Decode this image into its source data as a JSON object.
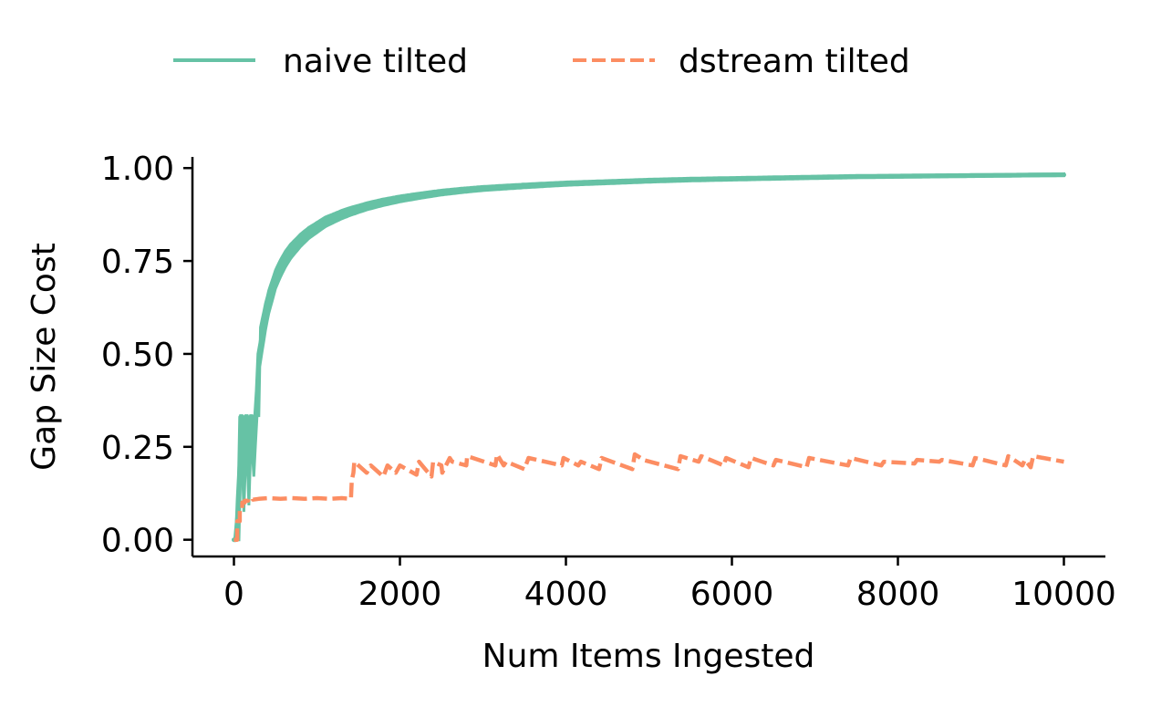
{
  "chart_data": {
    "type": "line",
    "title": "",
    "xlabel": "Num Items Ingested",
    "ylabel": "Gap Size Cost",
    "xlim": [
      -500,
      10500
    ],
    "ylim": [
      -0.045,
      1.03
    ],
    "xticks": [
      0,
      2000,
      4000,
      6000,
      8000,
      10000
    ],
    "xtick_labels": [
      "0",
      "2000",
      "4000",
      "6000",
      "8000",
      "10000"
    ],
    "yticks": [
      0.0,
      0.25,
      0.5,
      0.75,
      1.0
    ],
    "ytick_labels": [
      "0.00",
      "0.25",
      "0.50",
      "0.75",
      "1.00"
    ],
    "grid": false,
    "legend_placement": "top-center, above plot, 2 columns",
    "series": [
      {
        "name": "naive tilted",
        "color": "#66c2a5",
        "style": "solid",
        "x": [
          0,
          20,
          40,
          60,
          80,
          100,
          120,
          140,
          160,
          180,
          200,
          220,
          240,
          260,
          280,
          300,
          340,
          380,
          420,
          460,
          500,
          560,
          620,
          680,
          740,
          800,
          900,
          1000,
          1100,
          1200,
          1300,
          1400,
          1500,
          1600,
          1800,
          2000,
          2250,
          2500,
          2750,
          3000,
          3500,
          4000,
          4500,
          5000,
          5500,
          6000,
          6500,
          7000,
          7500,
          8000,
          8500,
          9000,
          9500,
          10000
        ],
        "y": [
          0.0,
          0.0,
          0.05,
          0.1,
          0.33,
          0.33,
          0.2,
          0.33,
          0.33,
          0.2,
          0.33,
          0.33,
          0.25,
          0.33,
          0.4,
          0.5,
          0.55,
          0.6,
          0.64,
          0.67,
          0.7,
          0.73,
          0.755,
          0.775,
          0.79,
          0.805,
          0.825,
          0.84,
          0.855,
          0.865,
          0.875,
          0.883,
          0.89,
          0.897,
          0.908,
          0.917,
          0.926,
          0.934,
          0.94,
          0.945,
          0.952,
          0.958,
          0.962,
          0.966,
          0.969,
          0.971,
          0.973,
          0.975,
          0.977,
          0.978,
          0.979,
          0.98,
          0.981,
          0.982
        ],
        "width_x": [
          0,
          20,
          40,
          60,
          80,
          120,
          160,
          200,
          240,
          300,
          400,
          500,
          700,
          900,
          1200,
          1500,
          2000,
          2500,
          3000,
          4000,
          5000,
          6000,
          8000,
          10000
        ],
        "width_y": [
          0.0,
          0.0,
          0.12,
          0.2,
          0.27,
          0.25,
          0.23,
          0.2,
          0.16,
          0.1,
          0.065,
          0.05,
          0.038,
          0.03,
          0.024,
          0.02,
          0.016,
          0.013,
          0.011,
          0.009,
          0.008,
          0.007,
          0.006,
          0.005
        ]
      },
      {
        "name": "dstream tilted",
        "color": "#fc8d62",
        "style": "dashed",
        "x": [
          0,
          40,
          40,
          70,
          70,
          100,
          100,
          130,
          130,
          170,
          170,
          230,
          230,
          300,
          420,
          560,
          700,
          850,
          1000,
          1150,
          1300,
          1410,
          1420,
          1440,
          1450,
          1600,
          1650,
          1800,
          1850,
          1950,
          2000,
          2200,
          2230,
          2380,
          2400,
          2500,
          2510,
          2600,
          2630,
          2800,
          2810,
          3150,
          3170,
          3250,
          3280,
          3500,
          3550,
          3950,
          3970,
          4150,
          4180,
          4400,
          4430,
          4800,
          4830,
          4900,
          4930,
          5350,
          5380,
          5600,
          5630,
          5900,
          5930,
          6200,
          6230,
          6500,
          6530,
          6900,
          6930,
          7400,
          7430,
          7800,
          7830,
          8200,
          8230,
          8500,
          8530,
          8900,
          8930,
          9300,
          9330,
          9500,
          9530,
          9600,
          9630,
          10000
        ],
        "y": [
          0.0,
          0.0,
          0.05,
          0.05,
          0.08,
          0.08,
          0.1,
          0.1,
          0.105,
          0.105,
          0.11,
          0.11,
          0.108,
          0.11,
          0.112,
          0.11,
          0.112,
          0.11,
          0.112,
          0.11,
          0.112,
          0.11,
          0.16,
          0.18,
          0.21,
          0.18,
          0.2,
          0.17,
          0.2,
          0.18,
          0.2,
          0.175,
          0.21,
          0.17,
          0.21,
          0.2,
          0.18,
          0.22,
          0.21,
          0.2,
          0.225,
          0.2,
          0.23,
          0.2,
          0.21,
          0.19,
          0.22,
          0.2,
          0.22,
          0.2,
          0.21,
          0.19,
          0.22,
          0.19,
          0.23,
          0.22,
          0.215,
          0.19,
          0.225,
          0.21,
          0.225,
          0.2,
          0.22,
          0.195,
          0.22,
          0.2,
          0.215,
          0.195,
          0.22,
          0.2,
          0.22,
          0.2,
          0.21,
          0.205,
          0.215,
          0.21,
          0.215,
          0.2,
          0.22,
          0.2,
          0.225,
          0.2,
          0.215,
          0.195,
          0.225,
          0.21
        ]
      }
    ]
  }
}
